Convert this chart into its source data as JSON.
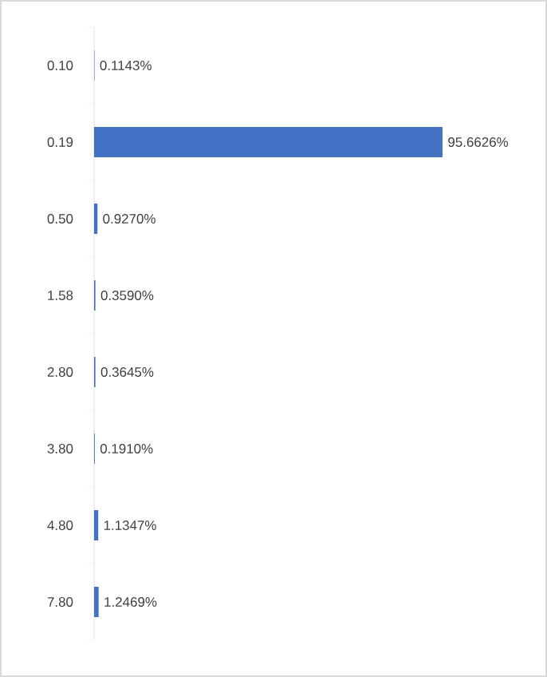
{
  "chart_data": {
    "type": "bar",
    "orientation": "horizontal",
    "categories": [
      "0.10",
      "0.19",
      "0.50",
      "1.58",
      "2.80",
      "3.80",
      "4.80",
      "7.80"
    ],
    "values": [
      0.1143,
      95.6626,
      0.927,
      0.359,
      0.3645,
      0.191,
      1.1347,
      1.2469
    ],
    "value_labels": [
      "0.1143%",
      "95.6626%",
      "0.9270%",
      "0.3590%",
      "0.3645%",
      "0.1910%",
      "1.1347%",
      "1.2469%"
    ],
    "color": "#4472c4"
  }
}
